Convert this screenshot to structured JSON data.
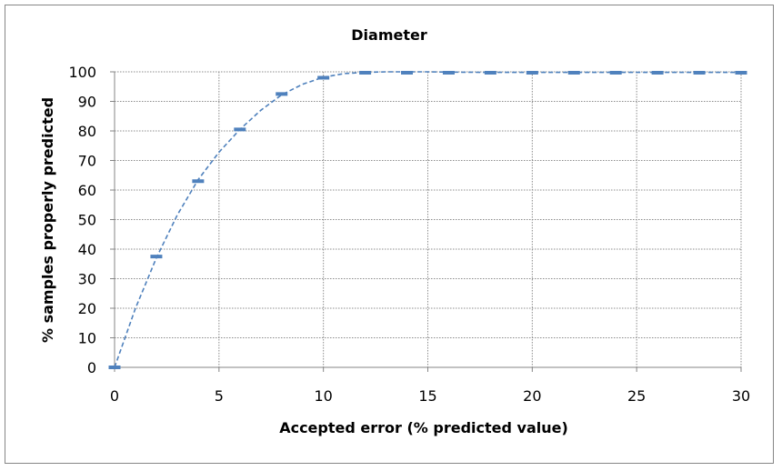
{
  "chart_data": {
    "type": "scatter",
    "title": "Diameter",
    "xlabel": "Accepted error (% predicted value)",
    "ylabel": "% samples properly predicted",
    "xlim": [
      0,
      30
    ],
    "ylim": [
      0,
      100
    ],
    "x_ticks": [
      "0",
      "5",
      "10",
      "15",
      "20",
      "25",
      "30"
    ],
    "y_ticks": [
      "0",
      "10",
      "20",
      "30",
      "40",
      "50",
      "60",
      "70",
      "80",
      "90",
      "100"
    ],
    "grid": true,
    "legend": "none",
    "series": [
      {
        "marker": "dash",
        "color": "#4f81bd",
        "x": [
          0,
          2,
          4,
          6,
          8,
          10,
          12,
          14,
          16,
          18,
          20,
          22,
          24,
          26,
          28,
          30
        ],
        "y": [
          0,
          37.5,
          63,
          80.5,
          92.5,
          98,
          99.7,
          99.7,
          99.7,
          99.7,
          99.7,
          99.7,
          99.7,
          99.7,
          99.7,
          99.7
        ]
      }
    ],
    "trendline": {
      "style": "dashed",
      "color": "#4f81bd",
      "x": [
        0,
        1,
        2,
        3,
        4,
        5,
        6,
        7,
        8,
        9,
        10,
        11,
        12,
        13,
        14,
        15,
        16,
        18,
        20,
        22,
        24,
        26,
        28,
        30
      ],
      "y": [
        0,
        20,
        37,
        51.5,
        63.5,
        72.8,
        80.5,
        87,
        92.2,
        95.8,
        98.2,
        99.4,
        99.8,
        100,
        100,
        100,
        99.9,
        99.8,
        99.8,
        99.8,
        99.8,
        99.8,
        99.8,
        99.8
      ]
    }
  }
}
